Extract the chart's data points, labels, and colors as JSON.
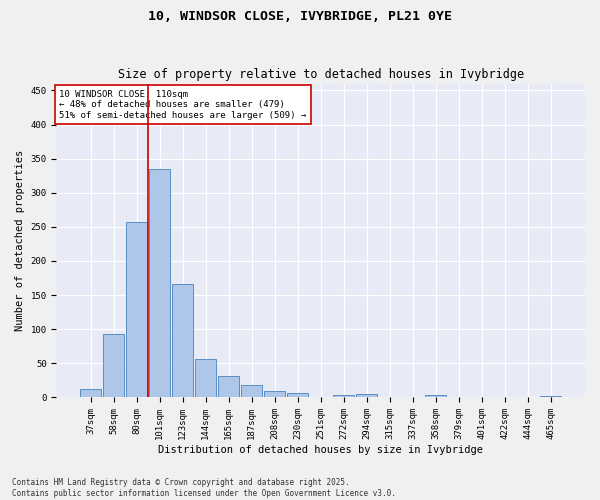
{
  "title": "10, WINDSOR CLOSE, IVYBRIDGE, PL21 0YE",
  "subtitle": "Size of property relative to detached houses in Ivybridge",
  "xlabel": "Distribution of detached houses by size in Ivybridge",
  "ylabel": "Number of detached properties",
  "categories": [
    "37sqm",
    "58sqm",
    "80sqm",
    "101sqm",
    "123sqm",
    "144sqm",
    "165sqm",
    "187sqm",
    "208sqm",
    "230sqm",
    "251sqm",
    "272sqm",
    "294sqm",
    "315sqm",
    "337sqm",
    "358sqm",
    "379sqm",
    "401sqm",
    "422sqm",
    "444sqm",
    "465sqm"
  ],
  "values": [
    13,
    93,
    257,
    335,
    167,
    57,
    31,
    18,
    9,
    6,
    0,
    4,
    5,
    0,
    0,
    3,
    0,
    0,
    0,
    0,
    2
  ],
  "bar_color": "#aec6e8",
  "bar_edge_color": "#5a8fc2",
  "background_color": "#e8eaf6",
  "fig_background_color": "#f0f0f0",
  "grid_color": "#ffffff",
  "vline_color": "#cc0000",
  "vline_x_index": 2.5,
  "annotation_text": "10 WINDSOR CLOSE: 110sqm\n← 48% of detached houses are smaller (479)\n51% of semi-detached houses are larger (509) →",
  "annotation_box_color": "#ffffff",
  "annotation_box_edge_color": "#cc0000",
  "ylim": [
    0,
    460
  ],
  "yticks": [
    0,
    50,
    100,
    150,
    200,
    250,
    300,
    350,
    400,
    450
  ],
  "footer": "Contains HM Land Registry data © Crown copyright and database right 2025.\nContains public sector information licensed under the Open Government Licence v3.0.",
  "title_fontsize": 9.5,
  "subtitle_fontsize": 8.5,
  "xlabel_fontsize": 7.5,
  "ylabel_fontsize": 7.5,
  "tick_fontsize": 6.5,
  "annotation_fontsize": 6.5,
  "footer_fontsize": 5.5
}
